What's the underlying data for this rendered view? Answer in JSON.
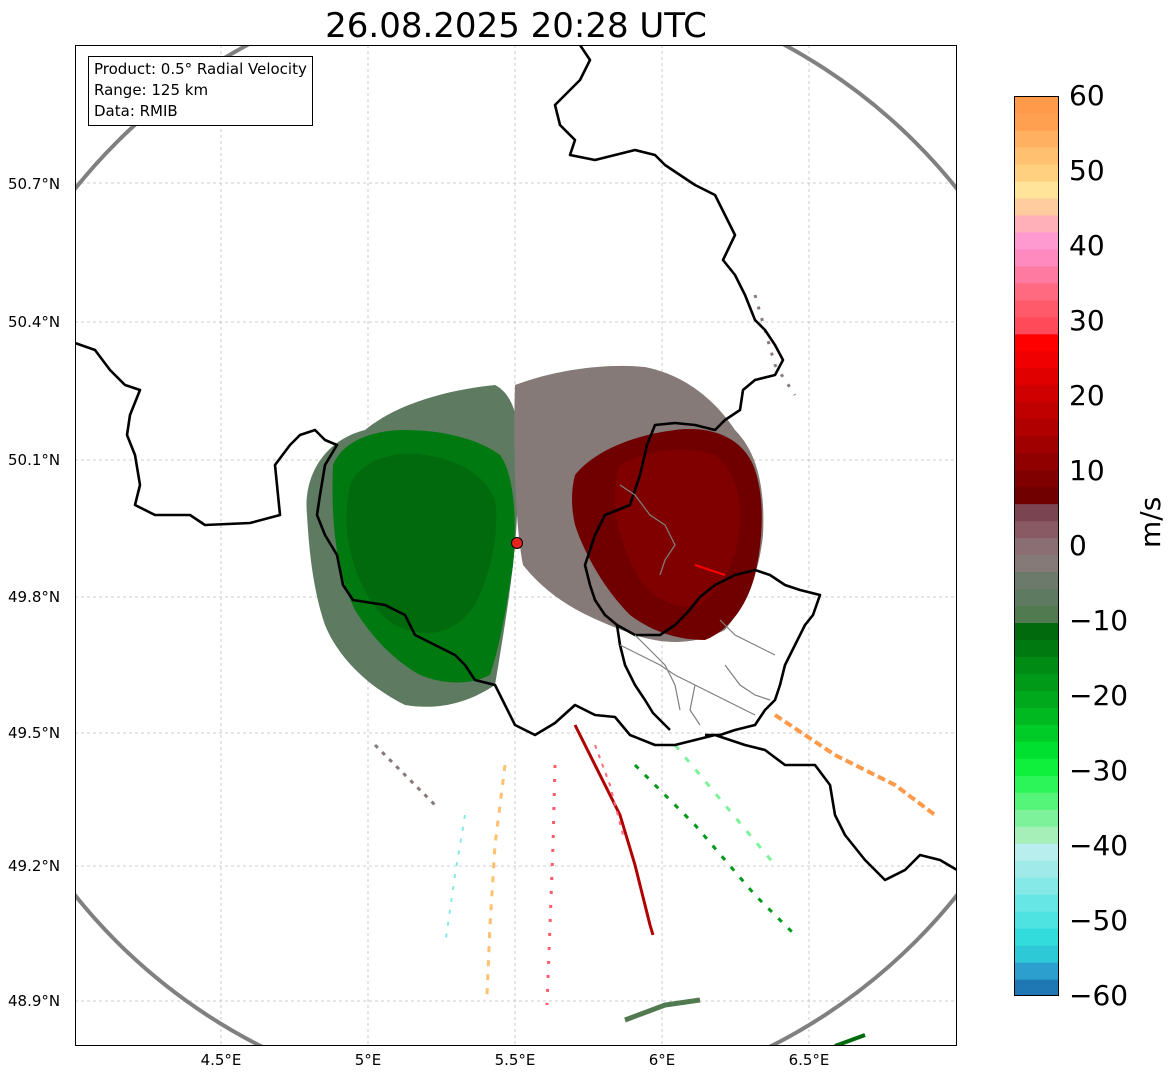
{
  "title": "26.08.2025 20:28 UTC",
  "info": {
    "product": "Product: 0.5° Radial Velocity",
    "range": "Range: 125 km",
    "data": "Data: RMIB"
  },
  "axes": {
    "y_ticks": [
      {
        "label": "50.7°N",
        "value": 50.7
      },
      {
        "label": "50.4°N",
        "value": 50.4
      },
      {
        "label": "50.1°N",
        "value": 50.1
      },
      {
        "label": "49.8°N",
        "value": 49.8
      },
      {
        "label": "49.5°N",
        "value": 49.5
      },
      {
        "label": "49.2°N",
        "value": 49.2
      },
      {
        "label": "48.9°N",
        "value": 48.9
      }
    ],
    "x_ticks": [
      {
        "label": "4.5°E",
        "value": 4.5
      },
      {
        "label": "5°E",
        "value": 5.0
      },
      {
        "label": "5.5°E",
        "value": 5.5
      },
      {
        "label": "6°E",
        "value": 6.0
      },
      {
        "label": "6.5°E",
        "value": 6.5
      }
    ],
    "lon_range": [
      4.0,
      7.0
    ],
    "lat_range": [
      48.8,
      51.0
    ]
  },
  "colorbar": {
    "label": "m/s",
    "min": -60,
    "max": 60,
    "ticks": [
      "60",
      "50",
      "40",
      "30",
      "20",
      "10",
      "0",
      "−10",
      "−20",
      "−30",
      "−40",
      "−50",
      "−60"
    ],
    "colors": [
      "#1f77b4",
      "#2c9fcf",
      "#2ec9d6",
      "#33dcdc",
      "#4ee3e1",
      "#66e6e4",
      "#85e9e8",
      "#a0ebea",
      "#b8eeee",
      "#a6efb8",
      "#7ef29a",
      "#55f57a",
      "#2cf55a",
      "#0ef03c",
      "#00e030",
      "#00cc28",
      "#00b820",
      "#00a81c",
      "#009a18",
      "#008c14",
      "#007a10",
      "#006a0c",
      "#527a50",
      "#5e7a60",
      "#6b7a6a",
      "#857a78",
      "#8a6e74",
      "#8a5a64",
      "#7a4450",
      "#700000",
      "#800000",
      "#900000",
      "#a00000",
      "#b00000",
      "#c00000",
      "#d00000",
      "#e00000",
      "#f00000",
      "#ff0000",
      "#ff4a5a",
      "#ff5a6a",
      "#ff6a80",
      "#ff7aa0",
      "#ff8ac0",
      "#ff9ad0",
      "#ffb0b8",
      "#ffcca0",
      "#ffe49a",
      "#ffd080",
      "#ffc070",
      "#ffb060",
      "#ffa050",
      "#ff9a4a"
    ]
  },
  "radar": {
    "site_lon": 5.505,
    "site_lat": 49.914,
    "range_km": 125
  },
  "colors": {
    "range_ring": "#808080",
    "border": "#000000",
    "province_border": "#808080",
    "grid": "#c0c0c0",
    "site_marker": "#e8231f"
  }
}
